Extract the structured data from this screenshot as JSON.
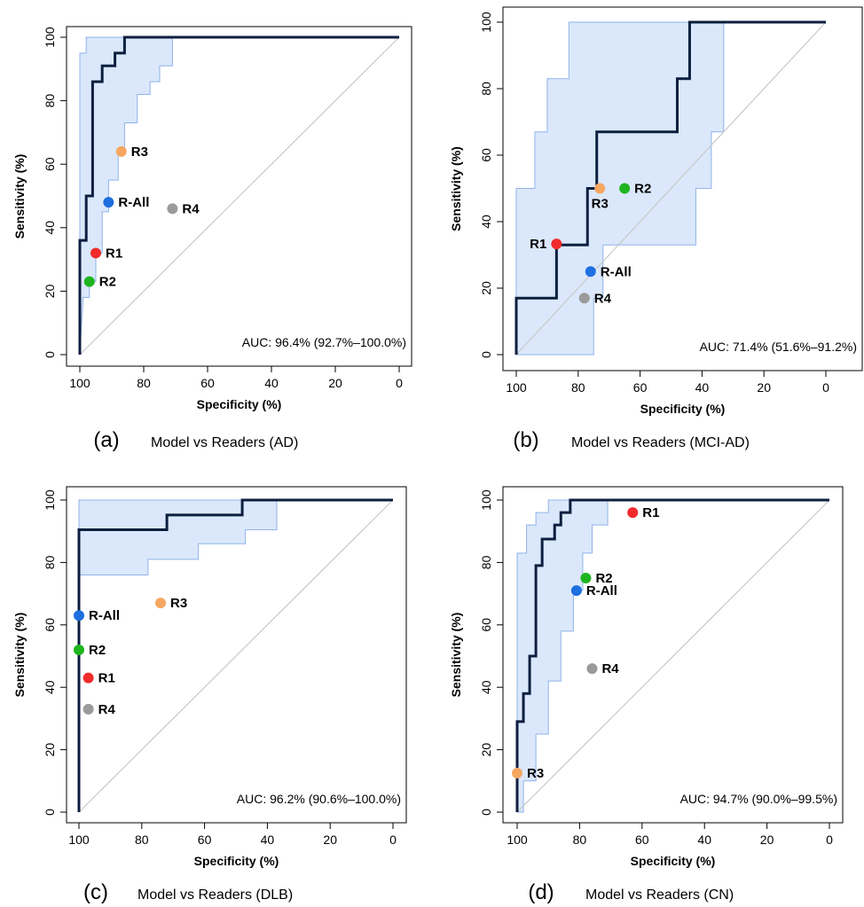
{
  "colors": {
    "roc_line": "#0d1f3f",
    "ci_fill": "#dbe8fb",
    "ci_line": "#8fb3ea",
    "diagonal": "#c8c8c8",
    "R1": "#f22b2b",
    "R2": "#1fb51f",
    "R3": "#f5a762",
    "R4": "#9a9a9a",
    "R-All": "#1e6fe0"
  },
  "chart_data": [
    {
      "type": "line",
      "panel": "(a)",
      "title": "Model vs Readers (AD)",
      "xlabel": "Specificity (%)",
      "ylabel": "Sensitivity (%)",
      "xlim": [
        100,
        0
      ],
      "ylim": [
        0,
        100
      ],
      "xticks": [
        "100",
        "80",
        "60",
        "40",
        "20",
        "0"
      ],
      "yticks": [
        "0",
        "20",
        "40",
        "60",
        "80",
        "100"
      ],
      "auc_text": "AUC: 96.4% (92.7%–100.0%)",
      "roc": {
        "specificity": [
          100,
          100,
          100,
          98,
          98,
          96,
          96,
          96,
          93,
          93,
          89,
          89,
          86,
          86,
          0
        ],
        "sensitivity": [
          0,
          36,
          36,
          36,
          50,
          50,
          86,
          86,
          86,
          91,
          91,
          95,
          95,
          100,
          100
        ]
      },
      "ci_upper": {
        "specificity": [
          100,
          100,
          98,
          98,
          94,
          94,
          0
        ],
        "sensitivity": [
          0,
          95,
          95,
          100,
          100,
          100,
          100
        ]
      },
      "ci_lower": {
        "specificity": [
          100,
          99,
          97,
          97,
          95,
          95,
          93,
          93,
          91,
          91,
          88,
          88,
          86,
          86,
          82,
          82,
          78,
          78,
          75,
          75,
          71,
          71,
          0
        ],
        "sensitivity": [
          0,
          18,
          18,
          23,
          23,
          32,
          32,
          45,
          45,
          55,
          55,
          64,
          64,
          73,
          73,
          82,
          82,
          86,
          86,
          91,
          91,
          100,
          100
        ]
      },
      "readers": [
        {
          "name": "R1",
          "specificity": 95,
          "sensitivity": 32,
          "label_pos": "right"
        },
        {
          "name": "R2",
          "specificity": 97,
          "sensitivity": 23,
          "label_pos": "right"
        },
        {
          "name": "R3",
          "specificity": 87,
          "sensitivity": 64,
          "label_pos": "right"
        },
        {
          "name": "R4",
          "specificity": 71,
          "sensitivity": 46,
          "label_pos": "right"
        },
        {
          "name": "R-All",
          "specificity": 91,
          "sensitivity": 48,
          "label_pos": "right"
        }
      ]
    },
    {
      "type": "line",
      "panel": "(b)",
      "title": "Model vs Readers (MCI-AD)",
      "xlabel": "Specificity (%)",
      "ylabel": "Sensitivity (%)",
      "xlim": [
        100,
        0
      ],
      "ylim": [
        0,
        100
      ],
      "xticks": [
        "100",
        "80",
        "60",
        "40",
        "20",
        "0"
      ],
      "yticks": [
        "0",
        "20",
        "40",
        "60",
        "80",
        "100"
      ],
      "auc_text": "AUC: 71.4% (51.6%–91.2%)",
      "roc": {
        "specificity": [
          100,
          100,
          87,
          87,
          77,
          77,
          74,
          74,
          48,
          48,
          44,
          44,
          0
        ],
        "sensitivity": [
          0,
          17,
          17,
          33,
          33,
          50,
          50,
          67,
          67,
          83,
          83,
          100,
          100
        ]
      },
      "ci_upper": {
        "specificity": [
          100,
          100,
          94,
          94,
          90,
          90,
          83,
          83,
          79,
          79,
          72,
          72,
          57,
          57,
          0
        ],
        "sensitivity": [
          0,
          50,
          50,
          67,
          67,
          83,
          83,
          100,
          100,
          100,
          100,
          100,
          100,
          100,
          100
        ]
      },
      "ci_lower": {
        "specificity": [
          100,
          75,
          75,
          72,
          72,
          67,
          67,
          42,
          42,
          37,
          37,
          33,
          33,
          28,
          0
        ],
        "sensitivity": [
          0,
          0,
          17,
          17,
          33,
          33,
          33,
          33,
          50,
          50,
          67,
          67,
          100,
          100,
          100
        ]
      },
      "readers": [
        {
          "name": "R1",
          "specificity": 87,
          "sensitivity": 33.3,
          "label_pos": "left"
        },
        {
          "name": "R2",
          "specificity": 65,
          "sensitivity": 50,
          "label_pos": "right"
        },
        {
          "name": "R3",
          "specificity": 73,
          "sensitivity": 50,
          "label_pos": "below"
        },
        {
          "name": "R4",
          "specificity": 78,
          "sensitivity": 17,
          "label_pos": "right"
        },
        {
          "name": "R-All",
          "specificity": 76,
          "sensitivity": 25,
          "label_pos": "right"
        }
      ]
    },
    {
      "type": "line",
      "panel": "(c)",
      "title": "Model vs Readers (DLB)",
      "xlabel": "Specificity (%)",
      "ylabel": "Sensitivity (%)",
      "xlim": [
        100,
        0
      ],
      "ylim": [
        0,
        100
      ],
      "xticks": [
        "100",
        "80",
        "60",
        "40",
        "20",
        "0"
      ],
      "yticks": [
        "0",
        "20",
        "40",
        "60",
        "80",
        "100"
      ],
      "auc_text": "AUC: 96.2% (90.6%–100.0%)",
      "roc": {
        "specificity": [
          100,
          100,
          72,
          72,
          48,
          48,
          0
        ],
        "sensitivity": [
          0,
          90.5,
          90.5,
          95.2,
          95.2,
          100,
          100
        ]
      },
      "ci_upper": {
        "specificity": [
          100,
          100,
          37,
          0
        ],
        "sensitivity": [
          0,
          100,
          100,
          100
        ]
      },
      "ci_lower": {
        "specificity": [
          100,
          100,
          78,
          78,
          62,
          62,
          47,
          47,
          37,
          37,
          0
        ],
        "sensitivity": [
          0,
          76,
          76,
          81,
          81,
          86,
          86,
          90.5,
          90.5,
          100,
          100
        ]
      },
      "readers": [
        {
          "name": "R1",
          "specificity": 97,
          "sensitivity": 43,
          "label_pos": "right"
        },
        {
          "name": "R2",
          "specificity": 100,
          "sensitivity": 52,
          "label_pos": "right"
        },
        {
          "name": "R3",
          "specificity": 74,
          "sensitivity": 67,
          "label_pos": "right"
        },
        {
          "name": "R4",
          "specificity": 97,
          "sensitivity": 33,
          "label_pos": "right"
        },
        {
          "name": "R-All",
          "specificity": 100,
          "sensitivity": 63,
          "label_pos": "right"
        }
      ]
    },
    {
      "type": "line",
      "panel": "(d)",
      "title": "Model vs Readers (CN)",
      "xlabel": "Specificity (%)",
      "ylabel": "Sensitivity (%)",
      "xlim": [
        100,
        0
      ],
      "ylim": [
        0,
        100
      ],
      "xticks": [
        "100",
        "80",
        "60",
        "40",
        "20",
        "0"
      ],
      "yticks": [
        "0",
        "20",
        "40",
        "60",
        "80",
        "100"
      ],
      "auc_text": "AUC: 94.7% (90.0%–99.5%)",
      "roc": {
        "specificity": [
          100,
          100,
          98,
          98,
          96,
          96,
          94,
          94,
          92,
          92,
          88,
          88,
          86,
          86,
          83,
          83,
          0
        ],
        "sensitivity": [
          0,
          29,
          29,
          38,
          38,
          50,
          50,
          79,
          79,
          87.5,
          87.5,
          92,
          92,
          96,
          96,
          100,
          100
        ]
      },
      "ci_upper": {
        "specificity": [
          100,
          100,
          97,
          97,
          94,
          94,
          90,
          90,
          0
        ],
        "sensitivity": [
          0,
          83,
          83,
          92,
          92,
          96,
          96,
          100,
          100
        ]
      },
      "ci_lower": {
        "specificity": [
          100,
          98,
          98,
          94,
          94,
          90,
          90,
          86,
          86,
          82,
          82,
          79,
          79,
          76,
          76,
          71,
          71,
          0
        ],
        "sensitivity": [
          0,
          0,
          10,
          10,
          25,
          25,
          42,
          42,
          58,
          58,
          71,
          71,
          83,
          83,
          92,
          92,
          100,
          100
        ]
      },
      "readers": [
        {
          "name": "R1",
          "specificity": 63,
          "sensitivity": 96,
          "label_pos": "right"
        },
        {
          "name": "R2",
          "specificity": 78,
          "sensitivity": 75,
          "label_pos": "right"
        },
        {
          "name": "R3",
          "specificity": 100,
          "sensitivity": 12.5,
          "label_pos": "right"
        },
        {
          "name": "R4",
          "specificity": 76,
          "sensitivity": 46,
          "label_pos": "right"
        },
        {
          "name": "R-All",
          "specificity": 81,
          "sensitivity": 71,
          "label_pos": "right"
        }
      ]
    }
  ]
}
